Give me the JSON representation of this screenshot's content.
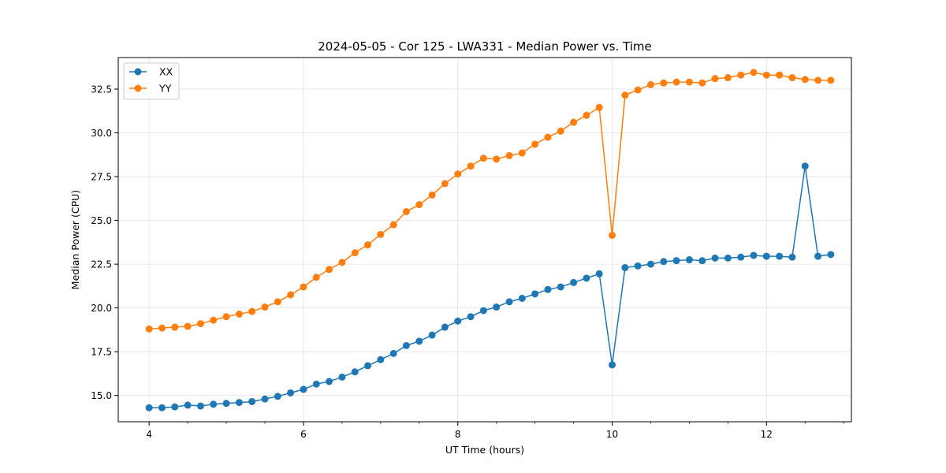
{
  "chart_data": {
    "type": "line",
    "title": "2024-05-05 - Cor 125 - LWA331 - Median Power vs. Time",
    "xlabel": "UT Time (hours)",
    "ylabel": "Median Power (CPU)",
    "xlim": [
      3.6,
      13.1
    ],
    "ylim": [
      13.5,
      34.3
    ],
    "xticks": [
      4,
      6,
      8,
      10,
      12
    ],
    "xtick_labels": [
      "4",
      "6",
      "8",
      "10",
      "12"
    ],
    "yticks": [
      15.0,
      17.5,
      20.0,
      22.5,
      25.0,
      27.5,
      30.0,
      32.5
    ],
    "ytick_labels": [
      "15.0",
      "17.5",
      "20.0",
      "22.5",
      "25.0",
      "27.5",
      "30.0",
      "32.5"
    ],
    "grid": true,
    "legend_position": "top-left",
    "x": [
      4.0,
      4.167,
      4.333,
      4.5,
      4.667,
      4.833,
      5.0,
      5.167,
      5.333,
      5.5,
      5.667,
      5.833,
      6.0,
      6.167,
      6.333,
      6.5,
      6.667,
      6.833,
      7.0,
      7.167,
      7.333,
      7.5,
      7.667,
      7.833,
      8.0,
      8.167,
      8.333,
      8.5,
      8.667,
      8.833,
      9.0,
      9.167,
      9.333,
      9.5,
      9.667,
      9.833,
      10.0,
      10.167,
      10.333,
      10.5,
      10.667,
      10.833,
      11.0,
      11.167,
      11.333,
      11.5,
      11.667,
      11.833,
      12.0,
      12.167,
      12.333,
      12.5,
      12.667,
      12.833
    ],
    "series": [
      {
        "name": "XX",
        "color": "#1f77b4",
        "values": [
          14.3,
          14.3,
          14.35,
          14.45,
          14.4,
          14.5,
          14.55,
          14.6,
          14.65,
          14.8,
          14.95,
          15.15,
          15.35,
          15.65,
          15.8,
          16.05,
          16.35,
          16.7,
          17.05,
          17.4,
          17.85,
          18.1,
          18.45,
          18.9,
          19.25,
          19.5,
          19.85,
          20.05,
          20.35,
          20.55,
          20.8,
          21.05,
          21.2,
          21.45,
          21.7,
          21.95,
          16.75,
          22.3,
          22.4,
          22.5,
          22.65,
          22.7,
          22.75,
          22.7,
          22.85,
          22.85,
          22.9,
          23.0,
          22.95,
          22.95,
          22.9,
          28.1,
          22.95,
          23.05
        ]
      },
      {
        "name": "YY",
        "color": "#ff7f0e",
        "values": [
          18.8,
          18.85,
          18.9,
          18.95,
          19.1,
          19.3,
          19.5,
          19.65,
          19.8,
          20.05,
          20.35,
          20.75,
          21.2,
          21.75,
          22.2,
          22.6,
          23.15,
          23.6,
          24.2,
          24.75,
          25.5,
          25.9,
          26.45,
          27.1,
          27.65,
          28.1,
          28.55,
          28.5,
          28.7,
          28.85,
          29.35,
          29.75,
          30.1,
          30.6,
          31.0,
          31.45,
          24.15,
          32.15,
          32.45,
          32.75,
          32.85,
          32.9,
          32.9,
          32.85,
          33.1,
          33.15,
          33.3,
          33.45,
          33.3,
          33.3,
          33.15,
          33.05,
          33.0,
          33.0
        ]
      }
    ]
  }
}
